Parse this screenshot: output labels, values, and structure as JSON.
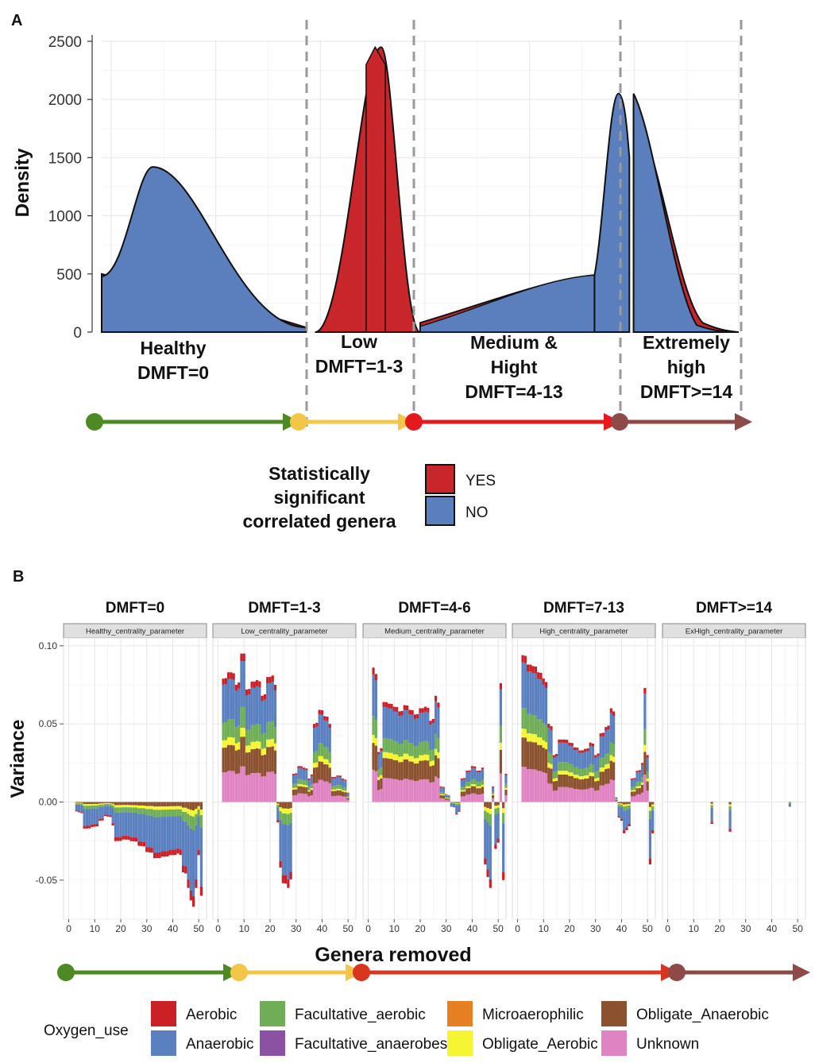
{
  "panel_a_letter": "A",
  "panel_b_letter": "B",
  "colors": {
    "healthy": "#4e8a24",
    "low": "#f3c647",
    "medium": "#e41a1c",
    "extreme": "#8e4a47",
    "yes": "#c8262b",
    "no": "#5b7fbd"
  },
  "chart_data": [
    {
      "type": "area",
      "panel": "A",
      "title": "",
      "ylabel": "Density",
      "xlabel": "",
      "ylim": [
        0,
        2500
      ],
      "yticks": [
        0,
        500,
        1000,
        1500,
        2000,
        2500
      ],
      "legend": {
        "title_lines": [
          "Statistically",
          "significant",
          "correlated genera"
        ],
        "entries": [
          {
            "label": "YES",
            "color": "#c8262b"
          },
          {
            "label": "NO",
            "color": "#5b7fbd"
          }
        ]
      },
      "phases": [
        {
          "lines": [
            "Healthy",
            "DMFT=0"
          ]
        },
        {
          "lines": [
            "Low",
            "DMFT=1-3"
          ]
        },
        {
          "lines": [
            "Medium &",
            "Hight",
            "DMFT=4-13"
          ]
        },
        {
          "lines": [
            "Extremely",
            "high",
            "DMFT>=14"
          ]
        }
      ],
      "series": [
        {
          "name": "YES",
          "segments": [
            {
              "x": [
                0,
                0.3,
                3.4
              ],
              "y": [
                500,
                280,
                50
              ]
            },
            {
              "x": [
                3.55,
                4.65,
                5.3
              ],
              "y": [
                0,
                2450,
                0
              ]
            },
            {
              "x": [
                5.3,
                8.2
              ],
              "y": [
                80,
                490
              ]
            },
            {
              "x": [
                8.2,
                8.85,
                10.6
              ],
              "y": [
                10,
                1950,
                0
              ]
            }
          ]
        },
        {
          "name": "NO",
          "segments": [
            {
              "x": [
                0,
                0.85,
                3.4
              ],
              "y": [
                480,
                1420,
                40
              ]
            },
            {
              "x": [
                4.4,
                4.72
              ],
              "y": [
                2450,
                2450
              ]
            },
            {
              "x": [
                5.3,
                7.0,
                8.2
              ],
              "y": [
                50,
                450,
                490
              ]
            },
            {
              "x": [
                8.2,
                8.6,
                8.85,
                10.6
              ],
              "y": [
                490,
                2050,
                2050,
                0
              ]
            }
          ]
        }
      ]
    },
    {
      "type": "bar",
      "panel": "B",
      "title": "",
      "xlabel": "Genera removed",
      "ylabel": "Variance",
      "ylim": [
        -0.075,
        0.105
      ],
      "yticks": [
        -0.05,
        0.0,
        0.05,
        0.1
      ],
      "ytick_labels": [
        "-0.05",
        "0.00",
        "0.05",
        "0.10"
      ],
      "xlim": [
        -2,
        53
      ],
      "xticks": [
        0,
        10,
        20,
        30,
        40,
        50
      ],
      "legend": {
        "title": "Oxygen_use",
        "entries": [
          {
            "label": "Aerobic",
            "color": "#cb2026"
          },
          {
            "label": "Anaerobic",
            "color": "#5a80c0"
          },
          {
            "label": "Facultative_aerobic",
            "color": "#6fae57"
          },
          {
            "label": "Facultative_anaerobes",
            "color": "#8b51a3"
          },
          {
            "label": "Microaerophilic",
            "color": "#e47f22"
          },
          {
            "label": "Obligate_Aerobic",
            "color": "#f6f533"
          },
          {
            "label": "Obligate_Anaerobic",
            "color": "#8c5230"
          },
          {
            "label": "Unknown",
            "color": "#e083c2"
          }
        ]
      },
      "facets": [
        {
          "title": "DMFT=0",
          "strip": "Healthy_centrality_parameter",
          "points": [
            [
              3,
              -0.006
            ],
            [
              6,
              -0.017
            ],
            [
              9,
              -0.016
            ],
            [
              12,
              -0.012
            ],
            [
              14,
              -0.009
            ],
            [
              17,
              -0.015
            ],
            [
              18,
              -0.025
            ],
            [
              21,
              -0.024
            ],
            [
              24,
              -0.025
            ],
            [
              27,
              -0.028
            ],
            [
              30,
              -0.032
            ],
            [
              33,
              -0.036
            ],
            [
              36,
              -0.035
            ],
            [
              39,
              -0.034
            ],
            [
              42,
              -0.033
            ],
            [
              44,
              -0.045
            ],
            [
              46,
              -0.055
            ],
            [
              47,
              -0.063
            ],
            [
              48,
              -0.067
            ],
            [
              49,
              -0.055
            ],
            [
              50,
              -0.034
            ],
            [
              51,
              -0.06
            ]
          ]
        },
        {
          "title": "DMFT=1-3",
          "strip": "Low_centrality_parameter",
          "points": [
            [
              2,
              0.079
            ],
            [
              4,
              0.083
            ],
            [
              5,
              0.083
            ],
            [
              7,
              0.075
            ],
            [
              9,
              0.095
            ],
            [
              10,
              0.095
            ],
            [
              11,
              0.072
            ],
            [
              13,
              0.077
            ],
            [
              15,
              0.078
            ],
            [
              17,
              0.068
            ],
            [
              19,
              0.08
            ],
            [
              21,
              0.081
            ],
            [
              22,
              0.075
            ],
            [
              23,
              -0.013
            ],
            [
              24,
              -0.042
            ],
            [
              25,
              -0.052
            ],
            [
              27,
              -0.055
            ],
            [
              29,
              0.018
            ],
            [
              31,
              0.023
            ],
            [
              33,
              0.022
            ],
            [
              35,
              0.015
            ],
            [
              37,
              0.05
            ],
            [
              39,
              0.059
            ],
            [
              41,
              0.055
            ],
            [
              43,
              0.05
            ],
            [
              44,
              0.016
            ],
            [
              46,
              0.017
            ],
            [
              48,
              0.015
            ],
            [
              50,
              0.006
            ]
          ]
        },
        {
          "title": "DMFT=4-6",
          "strip": "Medium_centrality_parameter",
          "points": [
            [
              2,
              0.086
            ],
            [
              4,
              0.032
            ],
            [
              6,
              0.064
            ],
            [
              8,
              0.063
            ],
            [
              10,
              0.061
            ],
            [
              12,
              0.058
            ],
            [
              14,
              0.062
            ],
            [
              16,
              0.059
            ],
            [
              18,
              0.056
            ],
            [
              20,
              0.06
            ],
            [
              22,
              0.061
            ],
            [
              24,
              0.052
            ],
            [
              26,
              0.068
            ],
            [
              28,
              0.01
            ],
            [
              30,
              0.005
            ],
            [
              32,
              -0.003
            ],
            [
              34,
              -0.008
            ],
            [
              36,
              0.015
            ],
            [
              38,
              0.02
            ],
            [
              40,
              0.023
            ],
            [
              42,
              0.02
            ],
            [
              44,
              0.022
            ],
            [
              45,
              -0.04
            ],
            [
              46,
              -0.048
            ],
            [
              47,
              -0.055
            ],
            [
              48,
              0.01
            ],
            [
              49,
              -0.03
            ],
            [
              50,
              -0.026
            ],
            [
              51,
              0.076
            ],
            [
              52,
              -0.05
            ],
            [
              53,
              0.018
            ]
          ]
        },
        {
          "title": "DMFT=7-13",
          "strip": "High_centrality_parameter",
          "points": [
            [
              2,
              0.094
            ],
            [
              4,
              0.088
            ],
            [
              6,
              0.087
            ],
            [
              8,
              0.083
            ],
            [
              10,
              0.079
            ],
            [
              12,
              0.05
            ],
            [
              14,
              0.03
            ],
            [
              16,
              0.04
            ],
            [
              18,
              0.04
            ],
            [
              20,
              0.038
            ],
            [
              22,
              0.035
            ],
            [
              24,
              0.033
            ],
            [
              26,
              0.034
            ],
            [
              28,
              0.038
            ],
            [
              30,
              0.03
            ],
            [
              32,
              0.044
            ],
            [
              34,
              0.048
            ],
            [
              36,
              0.06
            ],
            [
              37,
              0.058
            ],
            [
              38,
              0.003
            ],
            [
              39,
              -0.01
            ],
            [
              40,
              -0.012
            ],
            [
              41,
              -0.02
            ],
            [
              42,
              -0.018
            ],
            [
              44,
              0.015
            ],
            [
              46,
              0.02
            ],
            [
              48,
              0.025
            ],
            [
              49,
              0.073
            ],
            [
              50,
              0.03
            ],
            [
              51,
              -0.04
            ],
            [
              52,
              -0.02
            ]
          ]
        },
        {
          "title": "DMFT>=14",
          "strip": "ExHigh_centrality_parameter",
          "points": [
            [
              17,
              -0.014
            ],
            [
              24,
              -0.019
            ],
            [
              47,
              -0.003
            ]
          ]
        }
      ]
    }
  ]
}
